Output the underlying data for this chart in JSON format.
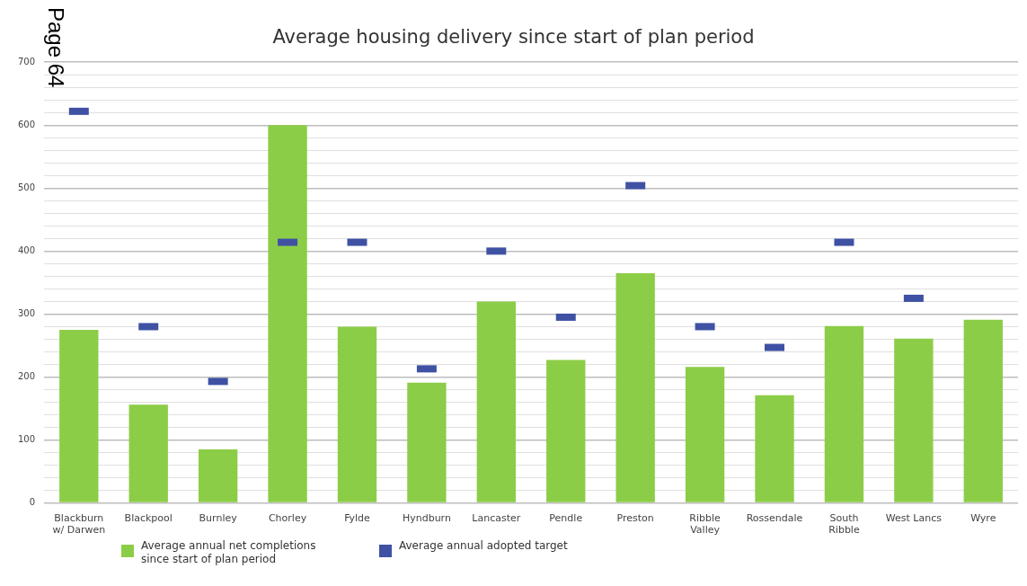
{
  "chart_data": {
    "type": "bar",
    "title": "Average housing delivery since start of plan period",
    "annotations": [
      "Page 64"
    ],
    "categories": [
      "Blackburn w/ Darwen",
      "Blackpool",
      "Burnley",
      "Chorley",
      "Fylde",
      "Hyndburn",
      "Lancaster",
      "Pendle",
      "Preston",
      "Ribble Valley",
      "Rossendale",
      "South Ribble",
      "West Lancs",
      "Wyre"
    ],
    "series": [
      {
        "name": "Average annual net completions since start of plan period",
        "color": "#8ccd47",
        "values": [
          275,
          156,
          85,
          600,
          280,
          191,
          320,
          227,
          365,
          216,
          171,
          281,
          261,
          291
        ]
      },
      {
        "name": "Average annual adopted target",
        "type": "scatter",
        "color": "#3f51a3",
        "values": [
          622,
          280,
          193,
          414,
          414,
          213,
          400,
          295,
          504,
          280,
          247,
          414,
          325,
          null
        ]
      }
    ],
    "ylim": [
      0,
      700
    ],
    "yticks": [
      0,
      {
        "value": 20,
        "label": null
      },
      {
        "value": 40,
        "label": null
      },
      {
        "value": 60,
        "label": null
      },
      {
        "value": 80,
        "label": null
      },
      100,
      {
        "value": 120,
        "label": null
      },
      {
        "value": 140,
        "label": null
      },
      {
        "value": 160,
        "label": null
      },
      {
        "value": 180,
        "label": null
      },
      200,
      {
        "value": 220,
        "label": null
      },
      {
        "value": 240,
        "label": null
      },
      {
        "value": 260,
        "label": null
      },
      {
        "value": 280,
        "label": null
      },
      300,
      {
        "value": 320,
        "label": null
      },
      {
        "value": 340,
        "label": null
      },
      {
        "value": 360,
        "label": null
      },
      {
        "value": 380,
        "label": null
      },
      400,
      {
        "value": 420,
        "label": null
      },
      {
        "value": 440,
        "label": null
      },
      {
        "value": 460,
        "label": null
      },
      {
        "value": 480,
        "label": null
      },
      500,
      {
        "value": 520,
        "label": null
      },
      {
        "value": 540,
        "label": null
      },
      {
        "value": 560,
        "label": null
      },
      {
        "value": 580,
        "label": null
      },
      600,
      {
        "value": 620,
        "label": null
      },
      {
        "value": 640,
        "label": null
      },
      {
        "value": 660,
        "label": null
      },
      {
        "value": 680,
        "label": null
      },
      700
    ],
    "grid": "y",
    "legend": "bottom"
  }
}
